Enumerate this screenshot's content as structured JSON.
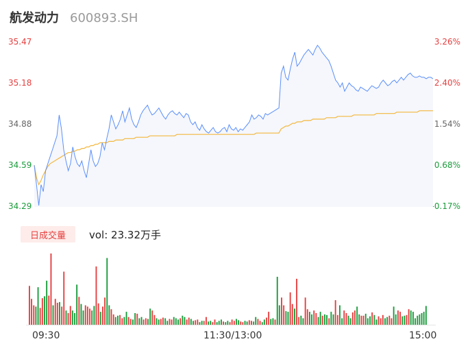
{
  "header": {
    "name": "航发动力",
    "code": "600893.SH"
  },
  "colors": {
    "up": "#e63f3f",
    "down": "#1a9c3b",
    "neutral": "#666666",
    "price_line": "#5b8ff9",
    "avg_line": "#f4b73d",
    "area_fill": "#f5f7fc"
  },
  "volume_panel": {
    "tab_label": "日成交量",
    "vol_label": "vol: 23.32万手"
  },
  "chart_data": [
    {
      "type": "line",
      "title": "",
      "y_left_ticks": [
        "35.47",
        "35.18",
        "34.88",
        "34.59",
        "34.29"
      ],
      "y_right_ticks": [
        "3.26%",
        "2.40%",
        "1.54%",
        "0.68%",
        "-0.17%"
      ],
      "x_ticks": [
        "09:30",
        "11:30/13:00",
        "15:00"
      ],
      "ylim": [
        34.29,
        35.47
      ],
      "series": [
        {
          "values": [
            34.59,
            34.45,
            34.3,
            34.45,
            34.4,
            34.55,
            34.6,
            34.65,
            34.7,
            34.75,
            34.8,
            34.95,
            34.85,
            34.7,
            34.62,
            34.55,
            34.6,
            34.72,
            34.65,
            34.6,
            34.58,
            34.62,
            34.55,
            34.5,
            34.6,
            34.7,
            34.62,
            34.58,
            34.6,
            34.65,
            34.75,
            34.7,
            34.78,
            34.85,
            34.95,
            34.9,
            34.85,
            34.88,
            34.92,
            34.98,
            34.9,
            34.95,
            35.0,
            34.92,
            34.88,
            34.86,
            34.9,
            34.95,
            34.98,
            35.0,
            35.02,
            34.98,
            34.95,
            34.96,
            34.98,
            35.0,
            34.97,
            34.94,
            34.92,
            34.95,
            34.97,
            34.98,
            34.96,
            34.95,
            34.97,
            34.95,
            34.93,
            34.96,
            34.95,
            34.9,
            34.88,
            34.9,
            34.86,
            34.84,
            34.88,
            34.85,
            34.83,
            34.82,
            34.84,
            34.86,
            34.83,
            34.82,
            34.83,
            34.85,
            34.86,
            34.83,
            34.88,
            34.85,
            34.84,
            34.86,
            34.83,
            34.85,
            34.84,
            34.86,
            34.88,
            34.9,
            34.95,
            34.92,
            34.93,
            34.95,
            34.94,
            34.92,
            34.96,
            34.95,
            34.96,
            34.97,
            34.98,
            34.99,
            35.0,
            35.25,
            35.3,
            35.22,
            35.2,
            35.28,
            35.35,
            35.4,
            35.3,
            35.32,
            35.35,
            35.38,
            35.4,
            35.42,
            35.4,
            35.38,
            35.42,
            35.45,
            35.43,
            35.4,
            35.38,
            35.36,
            35.34,
            35.3,
            35.25,
            35.2,
            35.18,
            35.15,
            35.18,
            35.12,
            35.15,
            35.18,
            35.16,
            35.15,
            35.13,
            35.12,
            35.15,
            35.14,
            35.13,
            35.12,
            35.14,
            35.16,
            35.15,
            35.14,
            35.15,
            35.18,
            35.2,
            35.18,
            35.16,
            35.17,
            35.19,
            35.2,
            35.18,
            35.2,
            35.22,
            35.2,
            35.22,
            35.24,
            35.25,
            35.23,
            35.22,
            35.22,
            35.23,
            35.22,
            35.22,
            35.21,
            35.22,
            35.22,
            35.21
          ],
          "color": "#5b8ff9"
        },
        {
          "values": [
            34.59,
            34.5,
            34.45,
            34.48,
            34.52,
            34.55,
            34.58,
            34.6,
            34.61,
            34.62,
            34.63,
            34.64,
            34.65,
            34.66,
            34.67,
            34.68,
            34.68,
            34.69,
            34.69,
            34.7,
            34.7,
            34.71,
            34.71,
            34.72,
            34.72,
            34.73,
            34.73,
            34.74,
            34.74,
            34.75,
            34.75,
            34.75,
            34.75,
            34.76,
            34.76,
            34.76,
            34.77,
            34.77,
            34.77,
            34.77,
            34.78,
            34.78,
            34.78,
            34.78,
            34.78,
            34.79,
            34.79,
            34.79,
            34.79,
            34.79,
            34.79,
            34.8,
            34.8,
            34.8,
            34.8,
            34.8,
            34.8,
            34.8,
            34.8,
            34.8,
            34.8,
            34.8,
            34.8,
            34.81,
            34.81,
            34.81,
            34.81,
            34.81,
            34.81,
            34.81,
            34.81,
            34.81,
            34.81,
            34.81,
            34.81,
            34.81,
            34.81,
            34.81,
            34.81,
            34.81,
            34.81,
            34.81,
            34.81,
            34.81,
            34.81,
            34.81,
            34.81,
            34.81,
            34.81,
            34.81,
            34.81,
            34.81,
            34.81,
            34.81,
            34.81,
            34.81,
            34.81,
            34.81,
            34.82,
            34.82,
            34.82,
            34.82,
            34.82,
            34.82,
            34.82,
            34.82,
            34.82,
            34.82,
            34.82,
            34.85,
            34.86,
            34.87,
            34.87,
            34.88,
            34.89,
            34.89,
            34.9,
            34.9,
            34.9,
            34.91,
            34.91,
            34.91,
            34.91,
            34.92,
            34.92,
            34.92,
            34.92,
            34.92,
            34.92,
            34.93,
            34.93,
            34.93,
            34.93,
            34.93,
            34.94,
            34.94,
            34.94,
            34.94,
            34.94,
            34.94,
            34.94,
            34.95,
            34.95,
            34.95,
            34.95,
            34.95,
            34.95,
            34.95,
            34.95,
            34.95,
            34.95,
            34.96,
            34.96,
            34.96,
            34.96,
            34.96,
            34.96,
            34.96,
            34.96,
            34.96,
            34.97,
            34.97,
            34.97,
            34.97,
            34.97,
            34.97,
            34.97,
            34.97,
            34.97,
            34.97,
            34.98,
            34.98,
            34.98,
            34.98,
            34.98,
            34.98,
            34.98
          ],
          "color": "#f4b73d"
        }
      ]
    },
    {
      "type": "bar",
      "title": "",
      "ylim": [
        0,
        110
      ],
      "values": [
        60,
        40,
        30,
        28,
        58,
        26,
        41,
        44,
        68,
        45,
        110,
        30,
        40,
        34,
        35,
        28,
        82,
        22,
        18,
        29,
        22,
        18,
        62,
        43,
        32,
        22,
        30,
        28,
        25,
        22,
        29,
        90,
        33,
        20,
        28,
        42,
        103,
        30,
        24,
        16,
        12,
        14,
        15,
        10,
        12,
        20,
        12,
        9,
        8,
        18,
        17,
        10,
        12,
        8,
        10,
        9,
        25,
        22,
        15,
        10,
        8,
        9,
        11,
        10,
        6,
        9,
        8,
        12,
        10,
        8,
        10,
        14,
        12,
        8,
        11,
        9,
        6,
        7,
        8,
        4,
        6,
        6,
        12,
        5,
        6,
        4,
        8,
        4,
        6,
        8,
        5,
        4,
        6,
        4,
        8,
        6,
        9,
        7,
        5,
        4,
        6,
        5,
        7,
        6,
        5,
        12,
        9,
        6,
        4,
        8,
        11,
        20,
        9,
        10,
        8,
        74,
        30,
        42,
        30,
        21,
        20,
        50,
        32,
        25,
        71,
        12,
        14,
        10,
        42,
        24,
        20,
        16,
        22,
        18,
        12,
        20,
        14,
        16,
        15,
        10,
        20,
        16,
        38,
        15,
        30,
        10,
        22,
        18,
        14,
        10,
        19,
        22,
        28,
        16,
        14,
        14,
        17,
        10,
        13,
        19,
        15,
        8,
        13,
        10,
        15,
        10,
        12,
        14,
        10,
        28,
        16,
        22,
        20,
        13,
        14,
        15,
        24,
        22,
        20,
        10,
        14,
        16,
        18,
        20,
        29
      ],
      "directions": "uuudduudduuduuduuduudddudduuudduuduudduudduudduuddudduudduudduudduudddudduudduudduudduudddudduuudduudduudduudduuddudduudduuduudduudduudduddudduudduudduudduudddudduuudduudduudduud"
    }
  ]
}
